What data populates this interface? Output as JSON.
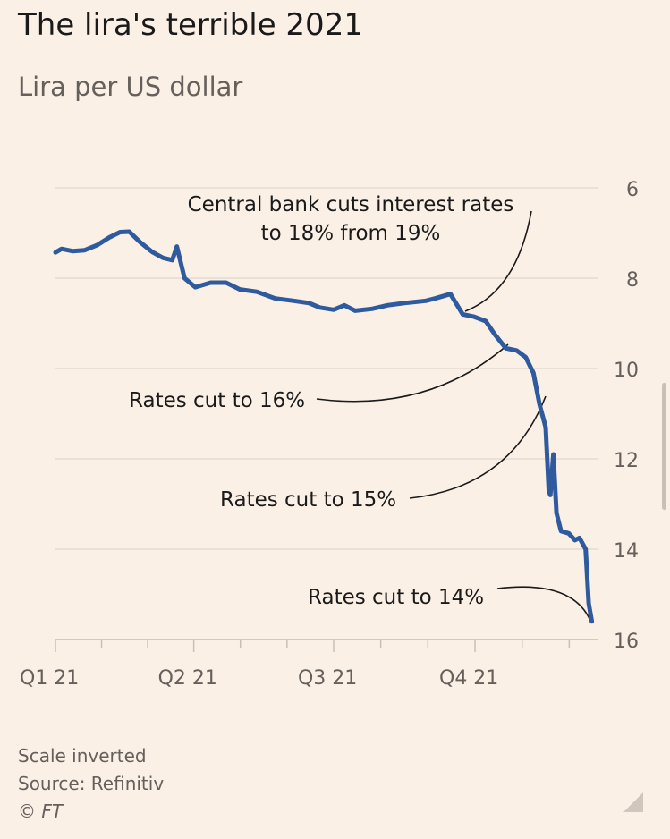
{
  "chart_data": {
    "type": "line",
    "title": "The lira's terrible 2021",
    "subtitle": "Lira per US dollar",
    "y_axis": {
      "ticks": [
        6,
        8,
        10,
        12,
        14,
        16
      ],
      "range": [
        6,
        16
      ],
      "inverted": true,
      "position": "right",
      "grid": true
    },
    "x_axis": {
      "tick_labels": [
        "Q1 21",
        "Q2 21",
        "Q3 21",
        "Q4 21"
      ]
    },
    "series": [
      {
        "color": "#2f5a9e",
        "points": [
          [
            "2021-01-01",
            7.43
          ],
          [
            "2021-01-05",
            7.35
          ],
          [
            "2021-01-12",
            7.4
          ],
          [
            "2021-01-20",
            7.38
          ],
          [
            "2021-01-28",
            7.27
          ],
          [
            "2021-02-05",
            7.1
          ],
          [
            "2021-02-12",
            6.98
          ],
          [
            "2021-02-18",
            6.97
          ],
          [
            "2021-02-25",
            7.2
          ],
          [
            "2021-03-05",
            7.42
          ],
          [
            "2021-03-12",
            7.55
          ],
          [
            "2021-03-18",
            7.6
          ],
          [
            "2021-03-21",
            7.3
          ],
          [
            "2021-03-26",
            8.0
          ],
          [
            "2021-04-02",
            8.2
          ],
          [
            "2021-04-12",
            8.1
          ],
          [
            "2021-04-22",
            8.1
          ],
          [
            "2021-05-01",
            8.25
          ],
          [
            "2021-05-12",
            8.3
          ],
          [
            "2021-05-24",
            8.45
          ],
          [
            "2021-06-05",
            8.5
          ],
          [
            "2021-06-15",
            8.55
          ],
          [
            "2021-06-22",
            8.65
          ],
          [
            "2021-07-01",
            8.7
          ],
          [
            "2021-07-08",
            8.6
          ],
          [
            "2021-07-15",
            8.72
          ],
          [
            "2021-07-26",
            8.68
          ],
          [
            "2021-08-05",
            8.6
          ],
          [
            "2021-08-16",
            8.55
          ],
          [
            "2021-08-30",
            8.5
          ],
          [
            "2021-09-05",
            8.45
          ],
          [
            "2021-09-15",
            8.35
          ],
          [
            "2021-09-23",
            8.8
          ],
          [
            "2021-09-30",
            8.85
          ],
          [
            "2021-10-08",
            8.95
          ],
          [
            "2021-10-14",
            9.25
          ],
          [
            "2021-10-21",
            9.55
          ],
          [
            "2021-10-28",
            9.6
          ],
          [
            "2021-11-03",
            9.75
          ],
          [
            "2021-11-08",
            10.1
          ],
          [
            "2021-11-12",
            10.8
          ],
          [
            "2021-11-16",
            11.3
          ],
          [
            "2021-11-18",
            12.7
          ],
          [
            "2021-11-19",
            12.8
          ],
          [
            "2021-11-21",
            11.9
          ],
          [
            "2021-11-23",
            13.2
          ],
          [
            "2021-11-26",
            13.6
          ],
          [
            "2021-12-01",
            13.65
          ],
          [
            "2021-12-05",
            13.8
          ],
          [
            "2021-12-08",
            13.75
          ],
          [
            "2021-12-12",
            14.0
          ],
          [
            "2021-12-14",
            15.2
          ],
          [
            "2021-12-16",
            15.6
          ]
        ]
      }
    ],
    "annotations": [
      {
        "id": "ann-central-bank",
        "lines": [
          "Central bank cuts interest rates",
          "to 18% from 19%"
        ],
        "date": "2021-09-23",
        "value": 8.8
      },
      {
        "id": "ann-16",
        "lines": [
          "Rates cut to 16%"
        ],
        "date": "2021-10-21",
        "value": 9.55
      },
      {
        "id": "ann-15",
        "lines": [
          "Rates cut to 15%"
        ],
        "date": "2021-11-18",
        "value": 10.8
      },
      {
        "id": "ann-14",
        "lines": [
          "Rates cut to 14%"
        ],
        "date": "2021-12-16",
        "value": 15.6
      }
    ]
  },
  "footer": {
    "note": "Scale inverted",
    "source": "Source: Refinitiv",
    "copyright": "© FT"
  }
}
